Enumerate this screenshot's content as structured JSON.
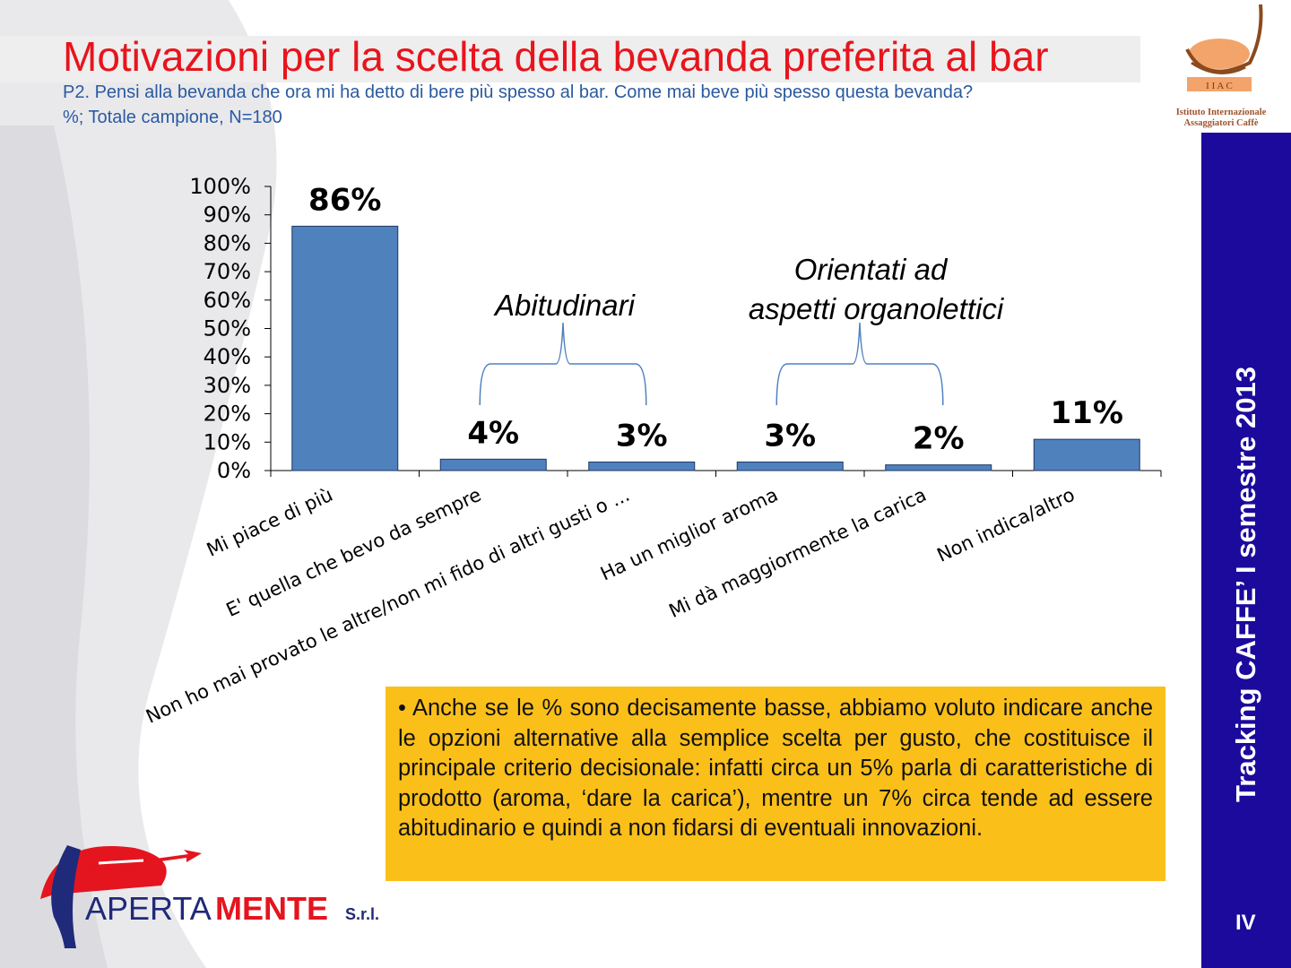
{
  "header": {
    "title": "Motivazioni per la scelta della bevanda preferita al bar",
    "question": "P2. Pensi alla bevanda che ora mi ha detto di bere più spesso al bar. Come mai beve più spesso questa bevanda?",
    "sample": "%; Totale campione, N=180"
  },
  "logos": {
    "iiac_letters": "I I A C",
    "iiac_name_1": "Istituto Internazionale",
    "iiac_name_2": "Assaggiatori Caffè",
    "apertamente_1": "APERTA",
    "apertamente_2": "MENTE",
    "apertamente_3": "S.r.l."
  },
  "chart_data": {
    "type": "bar",
    "categories": [
      "Mi piace di più",
      "E' quella che bevo da sempre",
      "Non ho mai provato le altre/non mi fido di altri gusti o ...",
      "Ha un miglior aroma",
      "Mi dà maggiormente la carica",
      "Non indica/altro"
    ],
    "values": [
      86,
      4,
      3,
      3,
      2,
      11
    ],
    "data_labels": [
      "86%",
      "4%",
      "3%",
      "3%",
      "2%",
      "11%"
    ],
    "ylim": [
      0,
      100
    ],
    "yticks": [
      "0%",
      "10%",
      "20%",
      "30%",
      "40%",
      "50%",
      "60%",
      "70%",
      "80%",
      "90%",
      "100%"
    ],
    "bar_color": "#4f81bd",
    "annotations": [
      {
        "text": "Abitudinari",
        "spans": [
          1,
          2
        ]
      },
      {
        "text": "Orientati ad",
        "text2": "aspetti organolettici",
        "spans": [
          3,
          4
        ]
      }
    ]
  },
  "note": "• Anche se le % sono decisamente basse, abbiamo voluto indicare anche le opzioni alternative alla semplice scelta per gusto, che costituisce il principale criterio decisionale: infatti circa un 5% parla di caratteristiche di prodotto (aroma, ‘dare la carica’), mentre un 7% circa tende ad essere abitudinario e quindi a non fidarsi di eventuali innovazioni.",
  "sidebar": {
    "label": "Tracking CAFFE’ I semestre 2013",
    "page": "IV"
  }
}
